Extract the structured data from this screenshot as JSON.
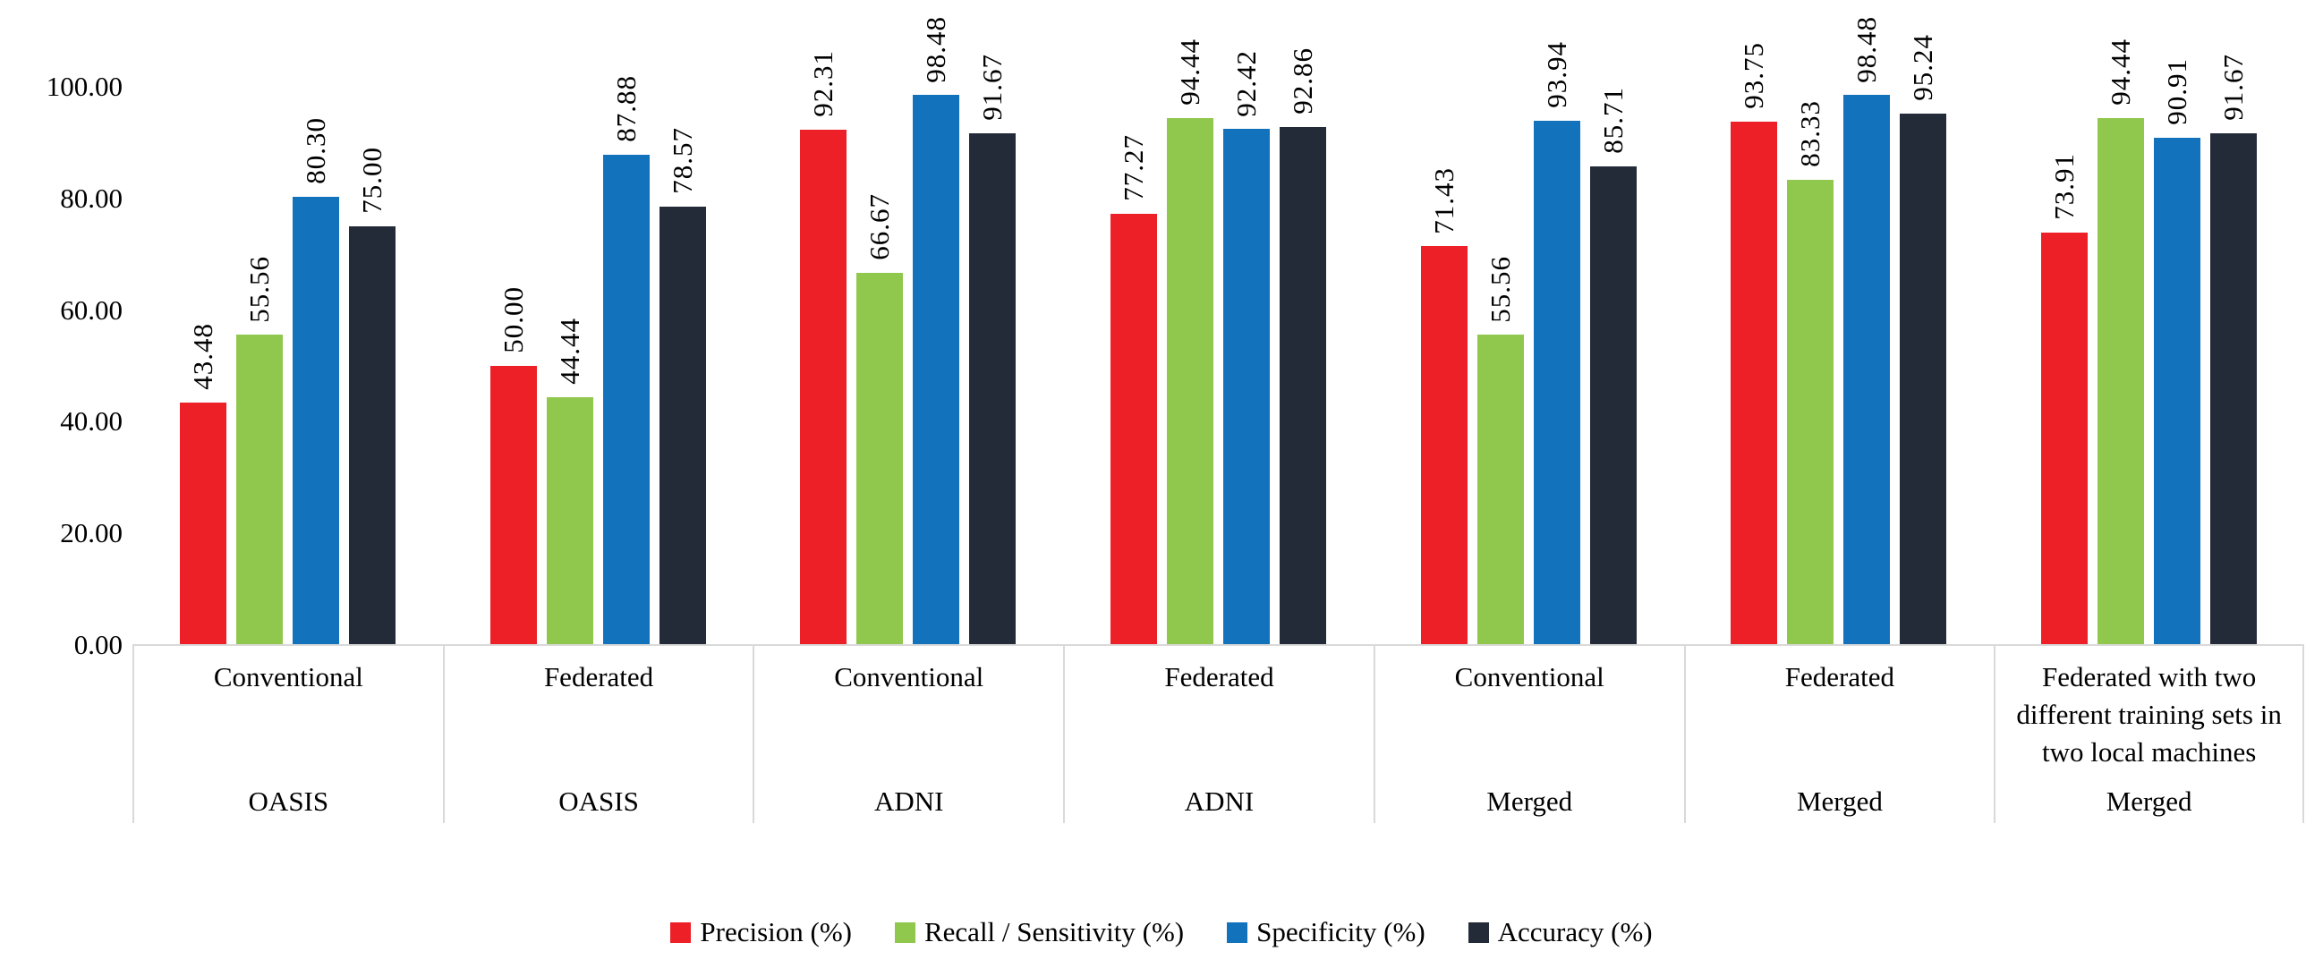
{
  "chart_data": {
    "type": "bar",
    "title": "",
    "xlabel": "",
    "ylabel": "",
    "ylim": [
      0,
      100
    ],
    "grid": false,
    "legend_position": "bottom",
    "axis_line_color": "#D9D9D9",
    "text_color": "#000000",
    "ytick_values": [
      0,
      20,
      40,
      60,
      80,
      100
    ],
    "ytick_labels": [
      "0.00",
      "20.00",
      "40.00",
      "60.00",
      "80.00",
      "100.00"
    ],
    "value_label_decimals": 2,
    "categories": [
      {
        "config": "Conventional",
        "dataset": "OASIS"
      },
      {
        "config": "Federated",
        "dataset": "OASIS"
      },
      {
        "config": "Conventional",
        "dataset": "ADNI"
      },
      {
        "config": "Federated",
        "dataset": "ADNI"
      },
      {
        "config": "Conventional",
        "dataset": "Merged"
      },
      {
        "config": "Federated",
        "dataset": "Merged"
      },
      {
        "config": "Federated with two different training sets in two local machines",
        "dataset": "Merged"
      }
    ],
    "series": [
      {
        "name": "Precision (%)",
        "color": "#ED2028",
        "values": [
          43.48,
          50.0,
          92.31,
          77.27,
          71.43,
          93.75,
          73.91
        ]
      },
      {
        "name": "Recall / Sensitivity (%)",
        "color": "#90C84E",
        "values": [
          55.56,
          44.44,
          66.67,
          94.44,
          55.56,
          83.33,
          94.44
        ]
      },
      {
        "name": "Specificity (%)",
        "color": "#1272BC",
        "values": [
          80.3,
          87.88,
          98.48,
          92.42,
          93.94,
          98.48,
          90.91
        ]
      },
      {
        "name": "Accuracy (%)",
        "color": "#232A38",
        "values": [
          75.0,
          78.57,
          91.67,
          92.86,
          85.71,
          95.24,
          91.67
        ]
      }
    ]
  }
}
